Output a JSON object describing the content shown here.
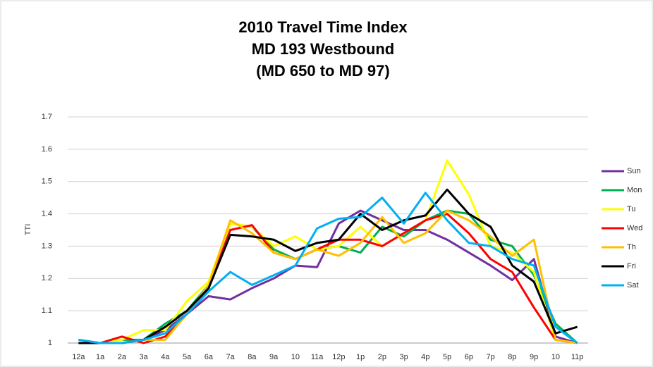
{
  "chart_data": {
    "type": "line",
    "title": [
      "2010 Travel Time Index",
      "MD 193 Westbound",
      "(MD 650 to MD 97)"
    ],
    "y_label": "TTI",
    "categories": [
      "12a",
      "1a",
      "2a",
      "3a",
      "4a",
      "5a",
      "6a",
      "7a",
      "8a",
      "9a",
      "10",
      "11a",
      "12p",
      "1p",
      "2p",
      "3p",
      "4p",
      "5p",
      "6p",
      "7p",
      "8p",
      "9p",
      "10",
      "11p"
    ],
    "ylim": [
      1,
      1.7
    ],
    "yticks": [
      1,
      1.1,
      1.2,
      1.3,
      1.4,
      1.5,
      1.6,
      1.7
    ],
    "grid": true,
    "legend": "right",
    "series": [
      {
        "name": "Sun",
        "color": "#7030a0",
        "values": [
          1.01,
          1.0,
          1.0,
          1.01,
          1.04,
          1.09,
          1.145,
          1.135,
          1.17,
          1.2,
          1.24,
          1.235,
          1.37,
          1.41,
          1.38,
          1.35,
          1.35,
          1.32,
          1.28,
          1.24,
          1.195,
          1.26,
          1.02,
          1.0
        ]
      },
      {
        "name": "Mon",
        "color": "#00b050",
        "values": [
          1.0,
          1.0,
          1.01,
          1.01,
          1.06,
          1.1,
          1.18,
          1.37,
          1.36,
          1.29,
          1.26,
          1.29,
          1.3,
          1.28,
          1.36,
          1.33,
          1.38,
          1.41,
          1.4,
          1.32,
          1.3,
          1.21,
          1.06,
          1.0
        ]
      },
      {
        "name": "Tu",
        "color": "#ffff00",
        "values": [
          1.0,
          1.0,
          1.01,
          1.04,
          1.04,
          1.13,
          1.19,
          1.37,
          1.36,
          1.3,
          1.33,
          1.29,
          1.3,
          1.36,
          1.3,
          1.34,
          1.38,
          1.565,
          1.46,
          1.3,
          1.28,
          1.22,
          1.01,
          1.0
        ]
      },
      {
        "name": "Wed",
        "color": "#ff0000",
        "values": [
          1.0,
          1.0,
          1.02,
          1.0,
          1.02,
          1.09,
          1.17,
          1.35,
          1.365,
          1.28,
          1.26,
          1.29,
          1.32,
          1.32,
          1.3,
          1.34,
          1.38,
          1.4,
          1.34,
          1.26,
          1.22,
          1.11,
          1.01,
          1.0
        ]
      },
      {
        "name": "Th",
        "color": "#ffc000",
        "values": [
          1.0,
          1.0,
          1.0,
          1.01,
          1.01,
          1.09,
          1.18,
          1.38,
          1.34,
          1.28,
          1.26,
          1.29,
          1.27,
          1.31,
          1.39,
          1.31,
          1.34,
          1.41,
          1.38,
          1.33,
          1.27,
          1.32,
          1.01,
          1.0
        ]
      },
      {
        "name": "Fri",
        "color": "#000000",
        "values": [
          1.0,
          1.0,
          1.0,
          1.01,
          1.05,
          1.1,
          1.17,
          1.335,
          1.33,
          1.32,
          1.285,
          1.31,
          1.32,
          1.4,
          1.35,
          1.38,
          1.395,
          1.475,
          1.4,
          1.36,
          1.24,
          1.19,
          1.03,
          1.05
        ]
      },
      {
        "name": "Sat",
        "color": "#00b0f0",
        "values": [
          1.01,
          1.0,
          1.0,
          1.01,
          1.03,
          1.09,
          1.16,
          1.22,
          1.18,
          1.21,
          1.24,
          1.355,
          1.385,
          1.39,
          1.45,
          1.37,
          1.465,
          1.38,
          1.31,
          1.3,
          1.26,
          1.24,
          1.05,
          1.0
        ]
      }
    ]
  }
}
